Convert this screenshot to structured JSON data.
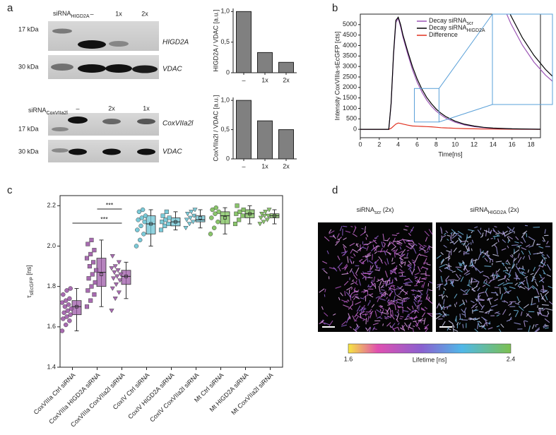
{
  "panel_labels": [
    "a",
    "b",
    "c",
    "d"
  ],
  "blots": [
    {
      "sirna": {
        "text": "siRNA",
        "sub": "HIGD2A"
      },
      "lanes": [
        "–",
        "1x",
        "2x"
      ],
      "rows": [
        {
          "label": "HIGD2A",
          "marker": "17 kDa"
        },
        {
          "label": "VDAC",
          "marker": "30 kDa"
        }
      ]
    },
    {
      "sirna": {
        "text": "siRNA",
        "sub": "CoxVIIa2l"
      },
      "lanes": [
        "–",
        "2x",
        "1x"
      ],
      "rows": [
        {
          "label": "CoxVIIa2l",
          "marker": "17 kDa"
        },
        {
          "label": "VDAC",
          "marker": "30 kDa"
        }
      ]
    }
  ],
  "chart_data": [
    {
      "type": "bar",
      "ylabel": "HIGD2A / VDAC [a.u.]",
      "categories": [
        "–",
        "1x",
        "2x"
      ],
      "values": [
        1.0,
        0.33,
        0.17
      ],
      "color": "#808080",
      "ylim": [
        0,
        1.05
      ],
      "yticks": [
        0,
        {
          "value": 0.5,
          "label": "0,5"
        },
        {
          "value": 1,
          "label": "1,0"
        }
      ]
    },
    {
      "type": "bar",
      "ylabel": "CoxVIIa2l / VDAC [a.u.]",
      "categories": [
        "–",
        "1x",
        "2x"
      ],
      "values": [
        1.0,
        0.65,
        0.5
      ],
      "color": "#808080",
      "ylim": [
        0,
        1.05
      ],
      "yticks": [
        0,
        {
          "value": 0.5,
          "label": "0,5"
        },
        {
          "value": 1,
          "label": "1,0"
        }
      ]
    },
    {
      "type": "line",
      "ylabel": "Intensity CoxVIIIa-sEcGFP [cts]",
      "xlabel": "Time[ns]",
      "x": [
        0,
        1,
        2,
        2.5,
        3,
        3.25,
        3.5,
        3.75,
        4,
        4.25,
        4.5,
        5,
        5.5,
        6,
        6.5,
        7,
        7.5,
        8,
        8.5,
        9,
        10,
        11,
        12,
        13,
        14,
        16,
        18,
        19
      ],
      "series": [
        {
          "name": "Decay siRNA",
          "name_sub": "scr",
          "color": "#9b55b5",
          "values": [
            0,
            0,
            0,
            0,
            0,
            1200,
            3500,
            5100,
            5300,
            4900,
            4400,
            3600,
            2850,
            2250,
            1780,
            1400,
            1100,
            870,
            690,
            540,
            340,
            210,
            130,
            80,
            50,
            20,
            8,
            5
          ]
        },
        {
          "name": "Decay siRNA",
          "name_sub": "HIGD2A",
          "color": "#000000",
          "values": [
            0,
            0,
            0,
            0,
            0,
            1250,
            3600,
            5200,
            5350,
            5000,
            4500,
            3720,
            3000,
            2400,
            1920,
            1530,
            1220,
            970,
            770,
            610,
            390,
            245,
            155,
            95,
            60,
            25,
            10,
            6
          ]
        },
        {
          "name": "Difference",
          "color": "#e0301e",
          "values": [
            0,
            0,
            0,
            0,
            0,
            50,
            150,
            250,
            300,
            280,
            250,
            200,
            160,
            150,
            140,
            130,
            120,
            100,
            80,
            70,
            50,
            35,
            25,
            15,
            10,
            5,
            2,
            1
          ]
        }
      ],
      "xlim": [
        0,
        19
      ],
      "ylim": [
        -400,
        5500
      ],
      "xticks": [
        0,
        2,
        4,
        6,
        8,
        10,
        12,
        14,
        16,
        18
      ],
      "yticks": [
        0,
        500,
        1000,
        1500,
        2000,
        2500,
        3000,
        3500,
        4000,
        4500,
        5000
      ],
      "inset": {
        "xlim": [
          5.7,
          8.3
        ],
        "ylim": [
          350,
          1950
        ],
        "color": "#5aa0d8"
      }
    },
    {
      "type": "box",
      "ylabel": "τ",
      "ylabel_sub": "sEcGFP",
      "ylabel_suffix": " [ns]",
      "categories": [
        "CoxVIIIa Ctrl siRNA",
        "CoxVIIIa HIGD2A siRNA",
        "CoxVIIIa CoxVIIa2l siRNA",
        "CoxIV Ctrl siRNA",
        "CoxIV HIGD2A siRNA",
        "CoxIV CoxVIIa2l siRNA",
        "Mt Ctrl siRNA",
        "Mt HIGD2A siRNA",
        "Mt CoxVIIa2l siRNA"
      ],
      "ylim": [
        1.4,
        2.25
      ],
      "yticks": [
        1.4,
        1.6,
        1.8,
        {
          "value": 2,
          "label": "2.0"
        },
        2.2
      ],
      "annotations": [
        "***",
        "***"
      ],
      "boxes": [
        {
          "color": "#9e5ba8",
          "marker": "circle",
          "q1": 1.66,
          "median": 1.7,
          "q3": 1.73,
          "whislo": 1.58,
          "whishi": 1.79,
          "mean": 1.7,
          "points": [
            1.58,
            1.61,
            1.63,
            1.64,
            1.65,
            1.66,
            1.67,
            1.68,
            1.69,
            1.7,
            1.71,
            1.72,
            1.73,
            1.74,
            1.76,
            1.78,
            1.79
          ]
        },
        {
          "color": "#9e5ba8",
          "marker": "square",
          "q1": 1.8,
          "median": 1.87,
          "q3": 1.94,
          "whislo": 1.7,
          "whishi": 2.03,
          "mean": 1.86,
          "points": [
            1.7,
            1.73,
            1.76,
            1.78,
            1.8,
            1.82,
            1.84,
            1.86,
            1.88,
            1.9,
            1.92,
            1.94,
            1.96,
            1.98,
            2.01,
            2.03
          ]
        },
        {
          "color": "#9e5ba8",
          "marker": "triangle",
          "q1": 1.81,
          "median": 1.85,
          "q3": 1.88,
          "whislo": 1.74,
          "whishi": 1.92,
          "mean": 1.85,
          "points": [
            1.68,
            1.74,
            1.77,
            1.79,
            1.81,
            1.83,
            1.84,
            1.85,
            1.86,
            1.87,
            1.88,
            1.89,
            1.9,
            1.92,
            1.95
          ]
        },
        {
          "color": "#6cc4d4",
          "marker": "circle",
          "q1": 2.06,
          "median": 2.11,
          "q3": 2.15,
          "whislo": 2.0,
          "whishi": 2.18,
          "mean": 2.11,
          "points": [
            2.0,
            2.03,
            2.06,
            2.08,
            2.1,
            2.12,
            2.13,
            2.14,
            2.15,
            2.17,
            2.18
          ]
        },
        {
          "color": "#6cc4d4",
          "marker": "square",
          "q1": 2.1,
          "median": 2.12,
          "q3": 2.14,
          "whislo": 2.08,
          "whishi": 2.17,
          "mean": 2.12,
          "points": [
            2.08,
            2.1,
            2.11,
            2.12,
            2.13,
            2.14,
            2.15,
            2.17
          ]
        },
        {
          "color": "#6cc4d4",
          "marker": "triangle",
          "q1": 2.12,
          "median": 2.13,
          "q3": 2.15,
          "whislo": 2.09,
          "whishi": 2.18,
          "mean": 2.14,
          "points": [
            2.09,
            2.11,
            2.12,
            2.13,
            2.14,
            2.15,
            2.16,
            2.17,
            2.18
          ]
        },
        {
          "color": "#7cbf5a",
          "marker": "circle",
          "q1": 2.11,
          "median": 2.15,
          "q3": 2.17,
          "whislo": 2.06,
          "whishi": 2.19,
          "mean": 2.14,
          "points": [
            2.06,
            2.09,
            2.12,
            2.14,
            2.16,
            2.17,
            2.18,
            2.19
          ]
        },
        {
          "color": "#7cbf5a",
          "marker": "square",
          "q1": 2.14,
          "median": 2.16,
          "q3": 2.18,
          "whislo": 2.11,
          "whishi": 2.2,
          "mean": 2.16,
          "points": [
            2.11,
            2.13,
            2.15,
            2.16,
            2.17,
            2.18,
            2.2
          ]
        },
        {
          "color": "#7cbf5a",
          "marker": "triangle",
          "q1": 2.14,
          "median": 2.15,
          "q3": 2.16,
          "whislo": 2.11,
          "whishi": 2.18,
          "mean": 2.15,
          "points": [
            2.11,
            2.12,
            2.13,
            2.14,
            2.15,
            2.15,
            2.16,
            2.17,
            2.18
          ]
        }
      ]
    }
  ],
  "images": {
    "panels": [
      {
        "text": "siRNA",
        "sub": "scr",
        "suffix": " (2x)"
      },
      {
        "text": "siRNA",
        "sub": "HIGD2A",
        "suffix": " (2x)"
      }
    ],
    "colorbar": {
      "min": 1.6,
      "max": 2.4,
      "label": "Lifetime [ns]"
    }
  }
}
